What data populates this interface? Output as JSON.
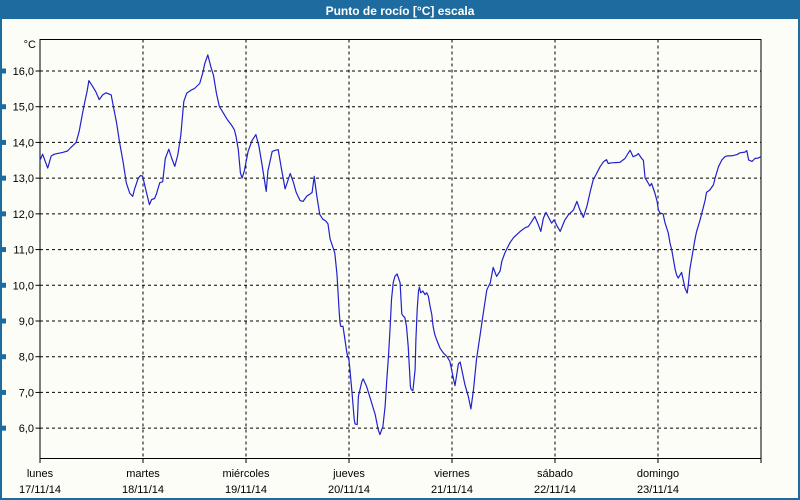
{
  "window": {
    "title": "Punto de rocío [°C] escala"
  },
  "colors": {
    "frame": "#1e6c9f",
    "titlebar_bg": "#1e6c9f",
    "title_text": "#ffffff",
    "plot_bg": "#fdfdf8",
    "grid": "#000000",
    "axis": "#000000",
    "line": "#2121cd",
    "text": "#000000"
  },
  "chart_data": {
    "type": "line",
    "title": "Punto de rocío [°C] escala",
    "ylabel": "°C",
    "xlabel": "",
    "ylim": [
      6.0,
      16.0
    ],
    "grid": true,
    "legend_position": "none",
    "y_axis": {
      "unit_label": "°C",
      "tick_step": 1.0,
      "ticks": [
        {
          "value": 16,
          "label": "16,0"
        },
        {
          "value": 15,
          "label": "15,0"
        },
        {
          "value": 14,
          "label": "14,0"
        },
        {
          "value": 13,
          "label": "13,0"
        },
        {
          "value": 12,
          "label": "12,0"
        },
        {
          "value": 11,
          "label": "11,0"
        },
        {
          "value": 10,
          "label": "10,0"
        },
        {
          "value": 9,
          "label": "9,0"
        },
        {
          "value": 8,
          "label": "8,0"
        },
        {
          "value": 7,
          "label": "7,0"
        },
        {
          "value": 6,
          "label": "6,0"
        }
      ]
    },
    "x_axis": {
      "hours_per_day": 24,
      "total_hours": 168,
      "days": [
        {
          "name": "lunes",
          "date": "17/11/14"
        },
        {
          "name": "martes",
          "date": "18/11/14"
        },
        {
          "name": "miércoles",
          "date": "19/11/14"
        },
        {
          "name": "jueves",
          "date": "20/11/14"
        },
        {
          "name": "viernes",
          "date": "21/11/14"
        },
        {
          "name": "sábado",
          "date": "22/11/14"
        },
        {
          "name": "domingo",
          "date": "23/11/14"
        }
      ]
    },
    "series": [
      {
        "name": "Punto de rocío [°C]",
        "color": "#2121cd",
        "points": [
          [
            0,
            13.5
          ],
          [
            0.6,
            13.67
          ],
          [
            1.8,
            13.28
          ],
          [
            2.6,
            13.62
          ],
          [
            3.3,
            13.67
          ],
          [
            5.3,
            13.72
          ],
          [
            6.4,
            13.76
          ],
          [
            7.2,
            13.86
          ],
          [
            8,
            13.95
          ],
          [
            8.4,
            14
          ],
          [
            9.1,
            14.3
          ],
          [
            10.2,
            15
          ],
          [
            11,
            15.45
          ],
          [
            11.4,
            15.73
          ],
          [
            12.3,
            15.56
          ],
          [
            13,
            15.42
          ],
          [
            13.8,
            15.2
          ],
          [
            14.6,
            15.33
          ],
          [
            15.4,
            15.39
          ],
          [
            16.6,
            15.33
          ],
          [
            17.1,
            15
          ],
          [
            17.8,
            14.58
          ],
          [
            18.5,
            14.03
          ],
          [
            19.4,
            13.42
          ],
          [
            20.1,
            12.87
          ],
          [
            20.9,
            12.58
          ],
          [
            21.6,
            12.49
          ],
          [
            22,
            12.68
          ],
          [
            22.9,
            13
          ],
          [
            23.4,
            13.07
          ],
          [
            23.9,
            13.06
          ],
          [
            24.6,
            12.7
          ],
          [
            25.5,
            12.26
          ],
          [
            26,
            12.4
          ],
          [
            26.7,
            12.43
          ],
          [
            27.2,
            12.58
          ],
          [
            27.9,
            12.87
          ],
          [
            28.6,
            12.9
          ],
          [
            29.2,
            13.55
          ],
          [
            30,
            13.81
          ],
          [
            30.7,
            13.55
          ],
          [
            31.4,
            13.33
          ],
          [
            32.1,
            13.65
          ],
          [
            32.8,
            14.2
          ],
          [
            33.5,
            15.15
          ],
          [
            34.2,
            15.38
          ],
          [
            35.3,
            15.47
          ],
          [
            36,
            15.51
          ],
          [
            37.2,
            15.65
          ],
          [
            37.9,
            15.94
          ],
          [
            38.4,
            16.21
          ],
          [
            39.1,
            16.45
          ],
          [
            39.9,
            16.08
          ],
          [
            40.4,
            15.89
          ],
          [
            41.1,
            15.38
          ],
          [
            41.8,
            15
          ],
          [
            42.3,
            14.91
          ],
          [
            43,
            14.77
          ],
          [
            43.7,
            14.63
          ],
          [
            44.6,
            14.49
          ],
          [
            45.3,
            14.35
          ],
          [
            45.7,
            14.16
          ],
          [
            46.2,
            13.8
          ],
          [
            46.7,
            13.15
          ],
          [
            47.1,
            13
          ],
          [
            47.6,
            13.2
          ],
          [
            48.5,
            13.75
          ],
          [
            49.4,
            14.05
          ],
          [
            50.3,
            14.22
          ],
          [
            51,
            13.9
          ],
          [
            51.7,
            13.4
          ],
          [
            52.7,
            12.63
          ],
          [
            53.1,
            13.2
          ],
          [
            54.1,
            13.75
          ],
          [
            54.8,
            13.78
          ],
          [
            55.5,
            13.8
          ],
          [
            56.2,
            13.3
          ],
          [
            57.1,
            12.7
          ],
          [
            57.8,
            12.95
          ],
          [
            58.3,
            13.13
          ],
          [
            59,
            12.9
          ],
          [
            59.7,
            12.6
          ],
          [
            60.6,
            12.37
          ],
          [
            61.3,
            12.35
          ],
          [
            62.2,
            12.5
          ],
          [
            62.9,
            12.55
          ],
          [
            63.4,
            12.6
          ],
          [
            63.9,
            13.05
          ],
          [
            64.5,
            12.5
          ],
          [
            65.2,
            11.98
          ],
          [
            65.9,
            11.85
          ],
          [
            66.6,
            11.8
          ],
          [
            67.1,
            11.72
          ],
          [
            67.6,
            11.3
          ],
          [
            68.3,
            11.05
          ],
          [
            68.7,
            10.9
          ],
          [
            69.2,
            10.3
          ],
          [
            69.7,
            9.3
          ],
          [
            69.9,
            8.95
          ],
          [
            70.1,
            8.85
          ],
          [
            70.6,
            8.85
          ],
          [
            71.1,
            8.45
          ],
          [
            71.5,
            8.1
          ],
          [
            72,
            7.9
          ],
          [
            72.2,
            7.65
          ],
          [
            72.7,
            7
          ],
          [
            73.2,
            6.25
          ],
          [
            73.4,
            6.12
          ],
          [
            73.9,
            6.1
          ],
          [
            74.2,
            6.89
          ],
          [
            75,
            7.31
          ],
          [
            75.3,
            7.38
          ],
          [
            76.1,
            7.17
          ],
          [
            77.3,
            6.7
          ],
          [
            78.1,
            6.38
          ],
          [
            78.8,
            5.96
          ],
          [
            79.2,
            5.82
          ],
          [
            79.9,
            6.05
          ],
          [
            80.4,
            6.61
          ],
          [
            80.8,
            7.36
          ],
          [
            81.2,
            8.02
          ],
          [
            81.6,
            8.86
          ],
          [
            81.9,
            9.6
          ],
          [
            82.3,
            10.07
          ],
          [
            82.7,
            10.25
          ],
          [
            83.2,
            10.32
          ],
          [
            83.9,
            10.07
          ],
          [
            84.3,
            9.2
          ],
          [
            84.7,
            9.13
          ],
          [
            85,
            9.1
          ],
          [
            85.4,
            8.85
          ],
          [
            85.8,
            8.29
          ],
          [
            86.1,
            7.64
          ],
          [
            86.3,
            7.17
          ],
          [
            86.5,
            7.08
          ],
          [
            86.9,
            7.05
          ],
          [
            87.4,
            7.64
          ],
          [
            87.6,
            8.48
          ],
          [
            87.9,
            9.32
          ],
          [
            88.2,
            9.84
          ],
          [
            88.4,
            9.95
          ],
          [
            88.7,
            9.79
          ],
          [
            89.2,
            9.84
          ],
          [
            89.7,
            9.74
          ],
          [
            90.1,
            9.79
          ],
          [
            90.5,
            9.69
          ],
          [
            90.9,
            9.41
          ],
          [
            91.3,
            9.18
          ],
          [
            91.6,
            8.85
          ],
          [
            92,
            8.62
          ],
          [
            92.4,
            8.48
          ],
          [
            93.2,
            8.24
          ],
          [
            94,
            8.1
          ],
          [
            94.8,
            8.01
          ],
          [
            95.5,
            7.87
          ],
          [
            96.3,
            7.4
          ],
          [
            96.7,
            7.19
          ],
          [
            97.5,
            7.8
          ],
          [
            97.9,
            7.85
          ],
          [
            99,
            7.22
          ],
          [
            99.8,
            6.89
          ],
          [
            100.4,
            6.54
          ],
          [
            101,
            7.08
          ],
          [
            101.7,
            7.92
          ],
          [
            102.5,
            8.57
          ],
          [
            103.3,
            9.22
          ],
          [
            104.1,
            9.87
          ],
          [
            104.5,
            9.97
          ],
          [
            104.9,
            10.06
          ],
          [
            105.6,
            10.5
          ],
          [
            106.4,
            10.25
          ],
          [
            107.2,
            10.4
          ],
          [
            107.6,
            10.67
          ],
          [
            108.3,
            10.9
          ],
          [
            108.7,
            11
          ],
          [
            109.5,
            11.19
          ],
          [
            110.3,
            11.33
          ],
          [
            111.1,
            11.42
          ],
          [
            111.9,
            11.51
          ],
          [
            113,
            11.61
          ],
          [
            113.8,
            11.65
          ],
          [
            114.6,
            11.79
          ],
          [
            115.3,
            11.93
          ],
          [
            116.1,
            11.7
          ],
          [
            116.7,
            11.51
          ],
          [
            117.3,
            11.88
          ],
          [
            117.9,
            12.04
          ],
          [
            118.4,
            11.93
          ],
          [
            119.2,
            11.74
          ],
          [
            119.8,
            11.83
          ],
          [
            120.4,
            11.68
          ],
          [
            121.2,
            11.51
          ],
          [
            122.3,
            11.83
          ],
          [
            123.1,
            11.97
          ],
          [
            124.3,
            12.11
          ],
          [
            125.1,
            12.35
          ],
          [
            125.8,
            12.11
          ],
          [
            126.6,
            11.9
          ],
          [
            127.4,
            12.2
          ],
          [
            128.2,
            12.62
          ],
          [
            128.9,
            12.95
          ],
          [
            129.7,
            13.13
          ],
          [
            130.5,
            13.32
          ],
          [
            131.3,
            13.46
          ],
          [
            132,
            13.52
          ],
          [
            132.4,
            13.41
          ],
          [
            133.2,
            13.43
          ],
          [
            135.1,
            13.44
          ],
          [
            136.3,
            13.55
          ],
          [
            137.1,
            13.71
          ],
          [
            137.5,
            13.78
          ],
          [
            138.2,
            13.6
          ],
          [
            139,
            13.64
          ],
          [
            139.4,
            13.69
          ],
          [
            140.2,
            13.55
          ],
          [
            140.6,
            13.5
          ],
          [
            141,
            13
          ],
          [
            141.4,
            12.93
          ],
          [
            142.1,
            12.78
          ],
          [
            142.5,
            12.85
          ],
          [
            143.3,
            12.57
          ],
          [
            143.8,
            12.35
          ],
          [
            144.1,
            12.11
          ],
          [
            144.5,
            12.02
          ],
          [
            145.2,
            12
          ],
          [
            145.6,
            11.76
          ],
          [
            146.4,
            11.46
          ],
          [
            146.8,
            11.18
          ],
          [
            147.2,
            11
          ],
          [
            148,
            10.44
          ],
          [
            148.3,
            10.3
          ],
          [
            148.7,
            10.2
          ],
          [
            149.5,
            10.36
          ],
          [
            150.3,
            9.92
          ],
          [
            150.8,
            9.78
          ],
          [
            151.1,
            10.06
          ],
          [
            151.4,
            10.44
          ],
          [
            152.2,
            11
          ],
          [
            152.6,
            11.28
          ],
          [
            153,
            11.51
          ],
          [
            153.8,
            11.83
          ],
          [
            154.6,
            12.2
          ],
          [
            155,
            12.39
          ],
          [
            155.3,
            12.6
          ],
          [
            156.1,
            12.67
          ],
          [
            156.9,
            12.81
          ],
          [
            157.3,
            13
          ],
          [
            158.1,
            13.32
          ],
          [
            158.9,
            13.51
          ],
          [
            159.6,
            13.6
          ],
          [
            160,
            13.62
          ],
          [
            161.5,
            13.63
          ],
          [
            162.4,
            13.66
          ],
          [
            163.1,
            13.71
          ],
          [
            164.3,
            13.73
          ],
          [
            164.7,
            13.77
          ],
          [
            165.1,
            13.51
          ],
          [
            165.9,
            13.47
          ],
          [
            166.6,
            13.55
          ],
          [
            167.3,
            13.56
          ],
          [
            168,
            13.6
          ]
        ]
      }
    ]
  }
}
